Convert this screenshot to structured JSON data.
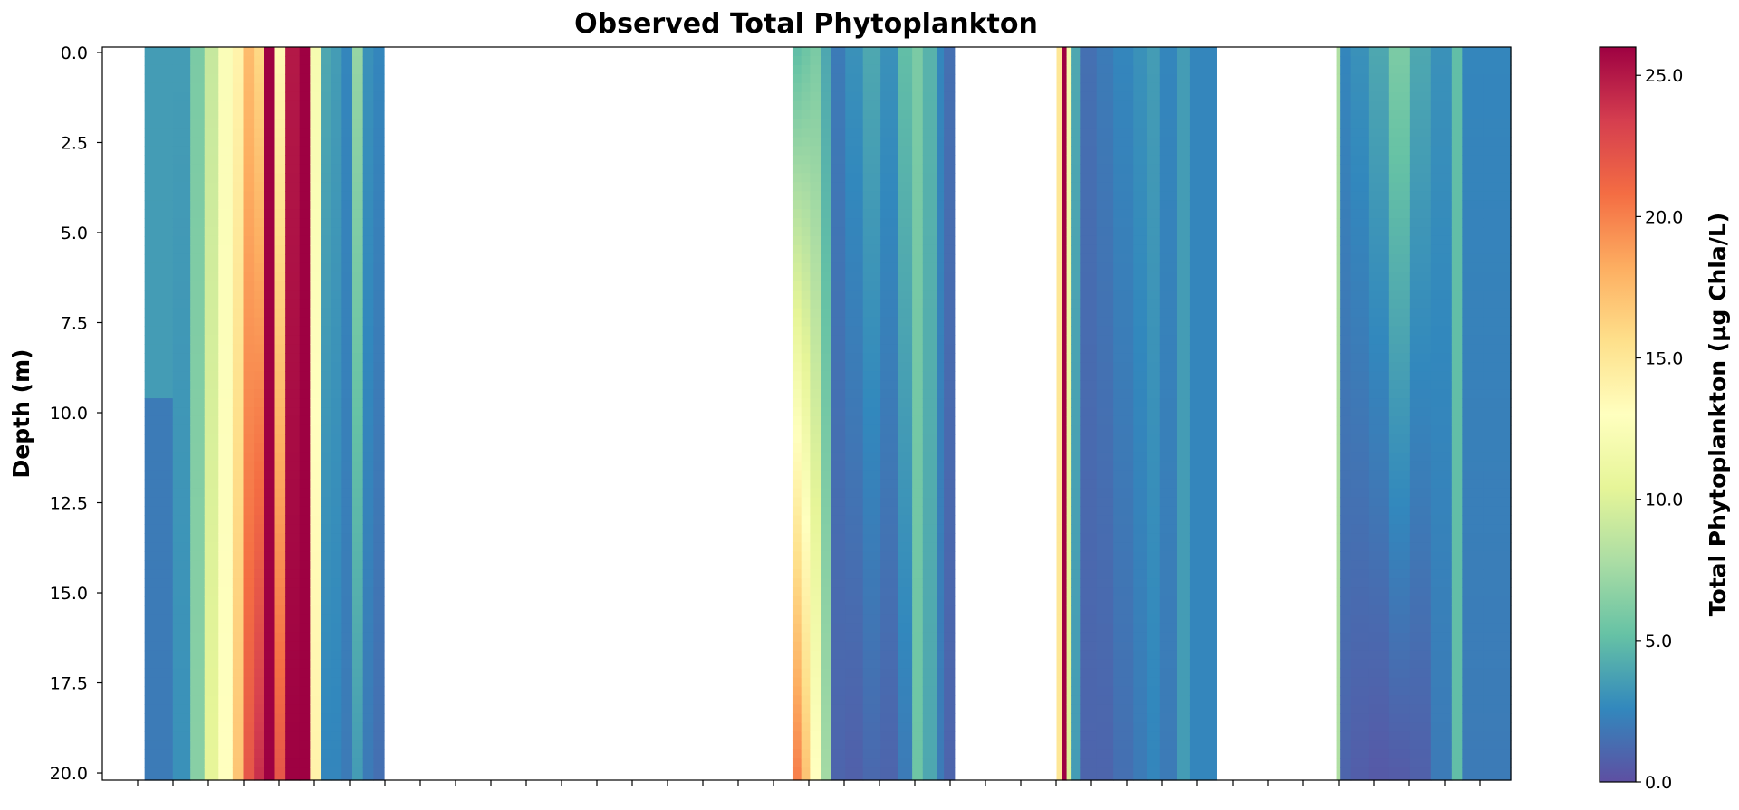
{
  "chart_data": {
    "type": "heatmap",
    "title": "Observed Total Phytoplankton",
    "xlabel": "",
    "ylabel": "Depth (m)",
    "ylim": [
      20.2,
      -0.15
    ],
    "yticks": [
      "0.0",
      "2.5",
      "5.0",
      "7.5",
      "10.0",
      "12.5",
      "15.0",
      "17.5",
      "20.0"
    ],
    "colorbar": {
      "label": "Total Phytoplankton (µg Chla/L)",
      "range": [
        0,
        26
      ],
      "ticks": [
        "0.0",
        "5.0",
        "10.0",
        "15.0",
        "20.0",
        "25.0"
      ],
      "colormap": "Spectral_r",
      "colors": [
        "#5e4fa2",
        "#3288bd",
        "#66c2a5",
        "#abdda4",
        "#e6f598",
        "#ffffbf",
        "#fee08b",
        "#fdae61",
        "#f46d43",
        "#d53e4f",
        "#9e0142"
      ]
    },
    "x_tick_count": 40,
    "x_range": [
      0,
      40
    ],
    "sampling_periods": [
      {
        "x_start": 1.2,
        "x_end": 8.0,
        "columns": [
          {
            "w": 0.8,
            "surface": 3.5,
            "bottom": 2.0,
            "depth_change": 9.7
          },
          {
            "w": 0.5,
            "surface": 3.5,
            "bottom": 3.0
          },
          {
            "w": 0.4,
            "surface": 6.0,
            "bottom": 6.5
          },
          {
            "w": 0.4,
            "surface": 9.0,
            "bottom": 10.5
          },
          {
            "w": 0.4,
            "surface": 12.5,
            "bottom": 13.0
          },
          {
            "w": 0.3,
            "surface": 14.0,
            "bottom": 17.0
          },
          {
            "w": 0.3,
            "surface": 17.5,
            "bottom": 22.0
          },
          {
            "w": 0.3,
            "surface": 16.0,
            "bottom": 24.0
          },
          {
            "w": 0.3,
            "surface": 26.0,
            "bottom": 26.0
          },
          {
            "w": 0.3,
            "surface": 13.5,
            "bottom": 22.0
          },
          {
            "w": 0.4,
            "surface": 25.0,
            "bottom": 26.0
          },
          {
            "w": 0.3,
            "surface": 26.0,
            "bottom": 26.0
          },
          {
            "w": 0.3,
            "surface": 12.0,
            "bottom": 14.0
          },
          {
            "w": 0.3,
            "surface": 4.0,
            "bottom": 2.5
          },
          {
            "w": 0.3,
            "surface": 3.5,
            "bottom": 2.5
          },
          {
            "w": 0.3,
            "surface": 2.5,
            "bottom": 2.0
          },
          {
            "w": 0.3,
            "surface": 7.0,
            "bottom": 3.5
          },
          {
            "w": 0.3,
            "surface": 3.0,
            "bottom": 2.0
          },
          {
            "w": 0.3,
            "surface": 2.5,
            "bottom": 1.5
          }
        ]
      },
      {
        "x_start": 19.6,
        "x_end": 24.2,
        "columns": [
          {
            "w": 0.25,
            "surface": 5.0,
            "bottom": 20.0
          },
          {
            "w": 0.25,
            "surface": 5.5,
            "bottom": 17.0
          },
          {
            "w": 0.3,
            "surface": 6.0,
            "bottom": 13.0
          },
          {
            "w": 0.3,
            "surface": 4.0,
            "bottom": 7.5
          },
          {
            "w": 0.4,
            "surface": 2.0,
            "bottom": 1.0
          },
          {
            "w": 0.5,
            "surface": 3.0,
            "bottom": 0.8
          },
          {
            "w": 0.5,
            "surface": 4.0,
            "bottom": 1.2
          },
          {
            "w": 0.5,
            "surface": 3.0,
            "bottom": 1.0
          },
          {
            "w": 0.4,
            "surface": 5.0,
            "bottom": 2.0
          },
          {
            "w": 0.3,
            "surface": 6.0,
            "bottom": 5.5
          },
          {
            "w": 0.4,
            "surface": 4.5,
            "bottom": 4.0
          },
          {
            "w": 0.2,
            "surface": 2.5,
            "bottom": 2.0
          },
          {
            "w": 0.3,
            "surface": 1.5,
            "bottom": 1.0
          }
        ]
      },
      {
        "x_start": 27.1,
        "x_end": 31.65,
        "columns": [
          {
            "w": 0.15,
            "surface": 15.0,
            "bottom": 15.0
          },
          {
            "w": 0.15,
            "surface": 26.0,
            "bottom": 26.0
          },
          {
            "w": 0.15,
            "surface": 12.0,
            "bottom": 10.0
          },
          {
            "w": 0.25,
            "surface": 4.0,
            "bottom": 3.5
          },
          {
            "w": 0.5,
            "surface": 1.5,
            "bottom": 1.0
          },
          {
            "w": 0.5,
            "surface": 2.0,
            "bottom": 1.0
          },
          {
            "w": 0.6,
            "surface": 2.5,
            "bottom": 1.5
          },
          {
            "w": 0.4,
            "surface": 3.0,
            "bottom": 2.0
          },
          {
            "w": 0.4,
            "surface": 3.5,
            "bottom": 2.5
          },
          {
            "w": 0.5,
            "surface": 2.5,
            "bottom": 2.0
          },
          {
            "w": 0.4,
            "surface": 3.5,
            "bottom": 3.5
          },
          {
            "w": 0.8,
            "surface": 2.5,
            "bottom": 2.5
          }
        ]
      },
      {
        "x_start": 35.05,
        "x_end": 40.0,
        "columns": [
          {
            "w": 0.12,
            "surface": 8.0,
            "bottom": 8.0
          },
          {
            "w": 0.3,
            "surface": 2.5,
            "bottom": 1.0
          },
          {
            "w": 0.5,
            "surface": 3.0,
            "bottom": 0.7
          },
          {
            "w": 0.6,
            "surface": 4.0,
            "bottom": 0.5
          },
          {
            "w": 0.6,
            "surface": 6.0,
            "bottom": 0.6
          },
          {
            "w": 0.6,
            "surface": 4.0,
            "bottom": 0.8
          },
          {
            "w": 0.6,
            "surface": 3.0,
            "bottom": 2.0
          },
          {
            "w": 0.3,
            "surface": 5.0,
            "bottom": 5.0
          },
          {
            "w": 0.6,
            "surface": 2.5,
            "bottom": 2.0
          },
          {
            "w": 0.8,
            "surface": 2.5,
            "bottom": 2.0
          }
        ]
      }
    ]
  }
}
